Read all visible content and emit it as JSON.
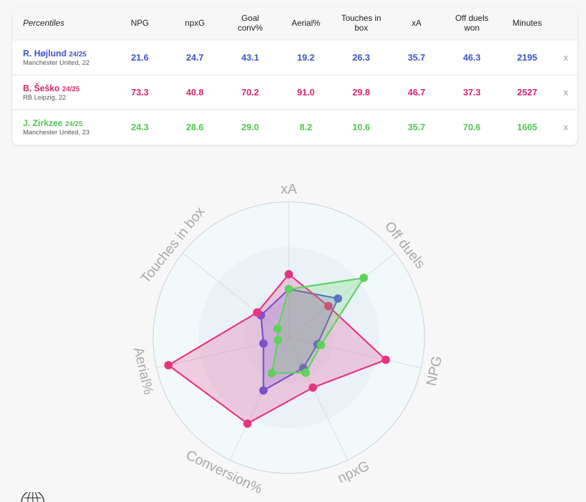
{
  "table": {
    "corner_label": "Percentiles",
    "columns": [
      "NPG",
      "npxG",
      "Goal conv%",
      "Aerial%",
      "Touches in box",
      "xA",
      "Off duels won",
      "Minutes"
    ],
    "remove_label": "x"
  },
  "players": [
    {
      "name": "R. Højlund",
      "season": "24/25",
      "meta": "Manchester United, 22",
      "color": "#3b55c8",
      "values": [
        "21.6",
        "24.7",
        "43.1",
        "19.2",
        "26.3",
        "35.7",
        "46.3",
        "2195"
      ]
    },
    {
      "name": "B. Šeško",
      "season": "24/25",
      "meta": "RB Leipzig, 22",
      "color": "#d6246e",
      "values": [
        "73.3",
        "40.8",
        "70.2",
        "91.0",
        "29.8",
        "46.7",
        "37.3",
        "2527"
      ]
    },
    {
      "name": "J. Zirkzee",
      "season": "24/25",
      "meta": "Manchester United, 23",
      "color": "#4cc94c",
      "values": [
        "24.3",
        "28.6",
        "29.0",
        "8.2",
        "10.6",
        "35.7",
        "70.6",
        "1605"
      ]
    }
  ],
  "chart_data": {
    "type": "radar",
    "axes": [
      "xA",
      "Off duels",
      "NPG",
      "npxG",
      "Conversion%",
      "Aerial%",
      "Touches in box"
    ],
    "range": [
      0,
      100
    ],
    "grid": true,
    "series": [
      {
        "name": "R. Højlund",
        "color": "#5a5ae0",
        "values": [
          35.7,
          46.3,
          21.6,
          24.7,
          43.1,
          19.2,
          26.3
        ]
      },
      {
        "name": "B. Šeško",
        "color": "#e8337f",
        "values": [
          46.7,
          37.3,
          73.3,
          40.8,
          70.2,
          91.0,
          29.8
        ]
      },
      {
        "name": "J. Zirkzee",
        "color": "#5dd25d",
        "values": [
          35.7,
          70.6,
          24.3,
          28.6,
          29.0,
          8.2,
          10.6
        ]
      }
    ]
  }
}
